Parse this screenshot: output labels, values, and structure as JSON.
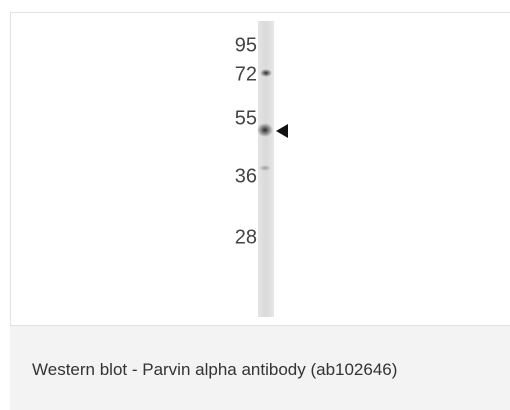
{
  "blot": {
    "markers": [
      "95",
      "72",
      "55",
      "36",
      "28"
    ]
  },
  "caption": "Western blot - Parvin alpha antibody (ab102646)"
}
